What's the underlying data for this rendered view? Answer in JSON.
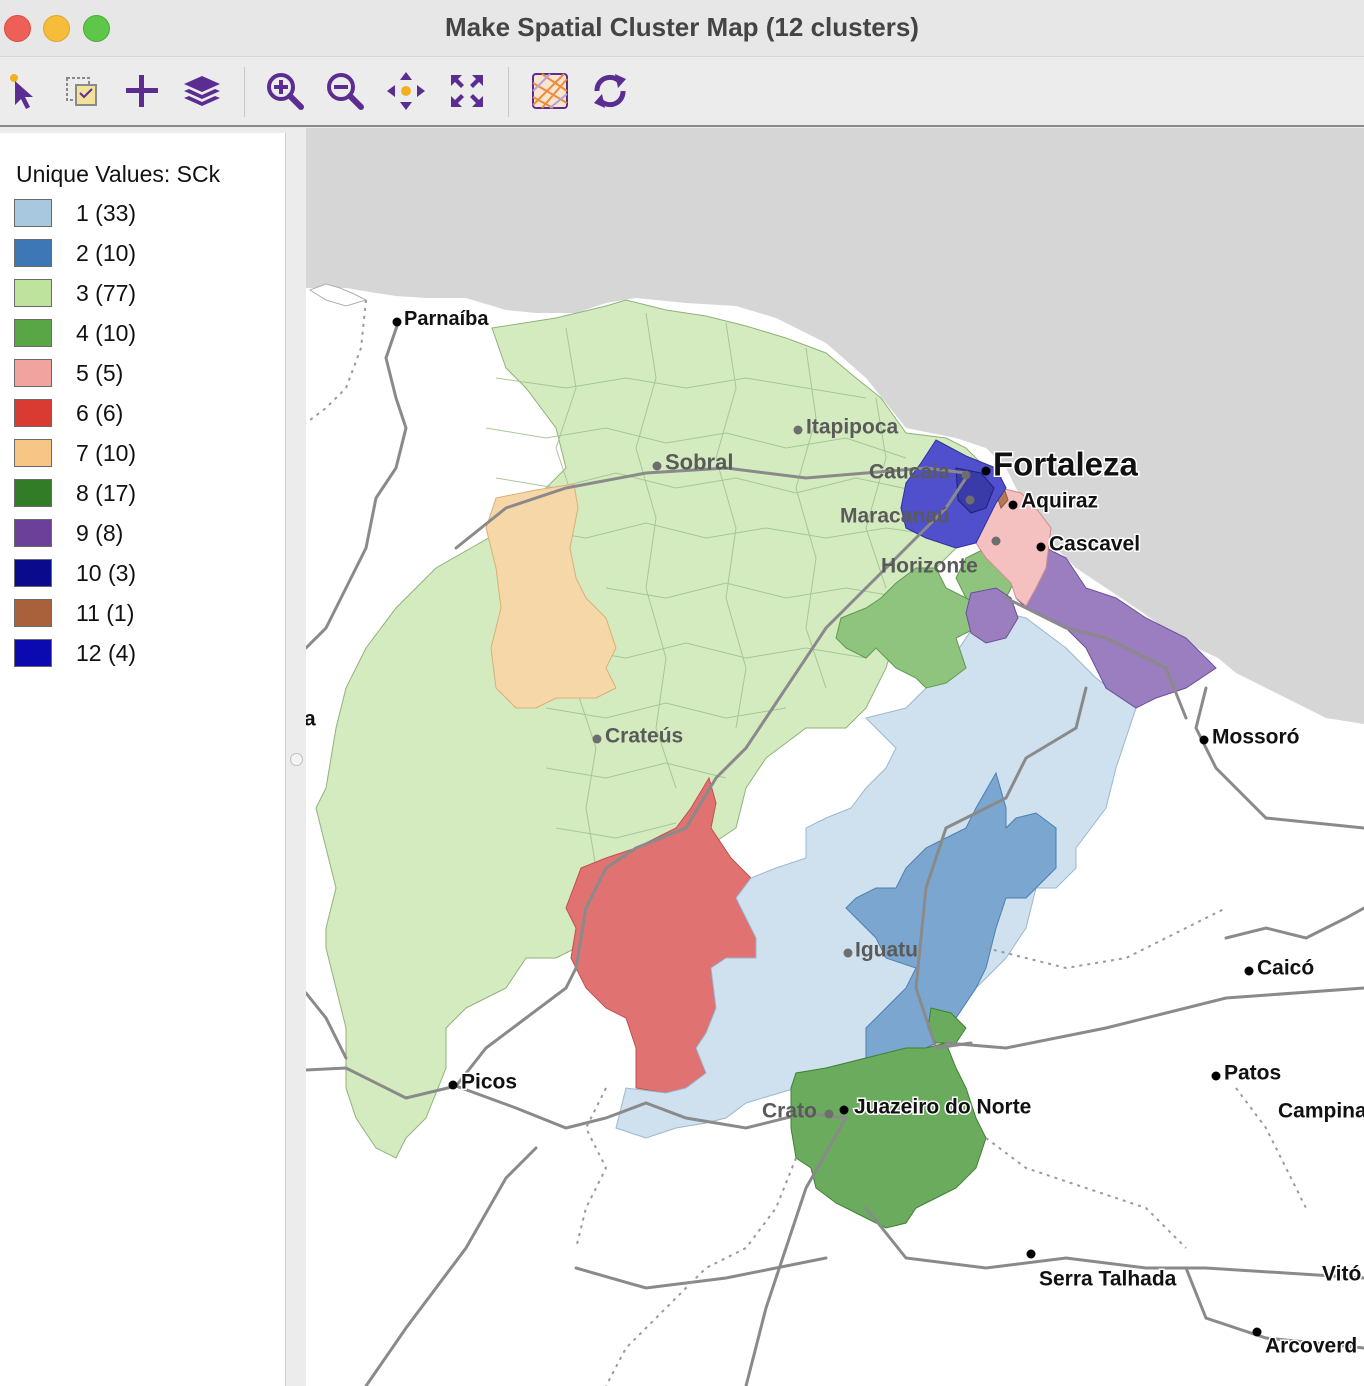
{
  "window": {
    "title": "Make Spatial Cluster Map (12 clusters)"
  },
  "toolbar": {
    "buttons": [
      {
        "name": "select-tool-button",
        "icon": "pointer-icon"
      },
      {
        "name": "selection-shape-button",
        "icon": "selection-icon"
      },
      {
        "name": "add-layer-button",
        "icon": "plus-icon"
      },
      {
        "name": "layers-button",
        "icon": "layers-icon"
      },
      {
        "name": "zoom-in-button",
        "icon": "zoom-in-icon"
      },
      {
        "name": "zoom-out-button",
        "icon": "zoom-out-icon"
      },
      {
        "name": "pan-button",
        "icon": "pan-icon"
      },
      {
        "name": "full-extent-button",
        "icon": "full-extent-icon"
      },
      {
        "name": "basemap-button",
        "icon": "basemap-icon"
      },
      {
        "name": "refresh-button",
        "icon": "refresh-icon"
      }
    ],
    "icon_color": "#5b2d91"
  },
  "legend": {
    "title": "Unique Values: SCk",
    "items": [
      {
        "label": "1 (33)",
        "color": "#a8c8e0"
      },
      {
        "label": "2 (10)",
        "color": "#3d77b5"
      },
      {
        "label": "3 (77)",
        "color": "#bde39d"
      },
      {
        "label": "4 (10)",
        "color": "#59a646"
      },
      {
        "label": "5 (5)",
        "color": "#f1a3a0"
      },
      {
        "label": "6 (6)",
        "color": "#d93a32"
      },
      {
        "label": "7 (10)",
        "color": "#f7c584"
      },
      {
        "label": "8 (17)",
        "color": "#337c27"
      },
      {
        "label": "9 (8)",
        "color": "#6a4099"
      },
      {
        "label": "10 (3)",
        "color": "#0a0a8c"
      },
      {
        "label": "11 (1)",
        "color": "#a8613a"
      },
      {
        "label": "12 (4)",
        "color": "#0a0ab0"
      }
    ]
  },
  "map": {
    "cities": [
      {
        "name": "Parnaíba",
        "kind": "black"
      },
      {
        "name": "Itapipoca",
        "kind": "gray"
      },
      {
        "name": "Sobral",
        "kind": "gray"
      },
      {
        "name": "Caucaia",
        "kind": "gray"
      },
      {
        "name": "Fortaleza",
        "kind": "black"
      },
      {
        "name": "Aquiraz",
        "kind": "black"
      },
      {
        "name": "Maracanaú",
        "kind": "gray"
      },
      {
        "name": "Cascavel",
        "kind": "black"
      },
      {
        "name": "Horizonte",
        "kind": "gray"
      },
      {
        "name": "Crateús",
        "kind": "gray"
      },
      {
        "name": "Mossoró",
        "kind": "black"
      },
      {
        "name": "Iguatu",
        "kind": "gray"
      },
      {
        "name": "Caicó",
        "kind": "black"
      },
      {
        "name": "Patos",
        "kind": "black"
      },
      {
        "name": "Campina",
        "kind": "black"
      },
      {
        "name": "Picos",
        "kind": "black"
      },
      {
        "name": "Crato",
        "kind": "gray"
      },
      {
        "name": "Juazeiro do Norte",
        "kind": "black"
      },
      {
        "name": "Serra Talhada",
        "kind": "black"
      },
      {
        "name": "Vitó",
        "kind": "black"
      },
      {
        "name": "Arcoverd",
        "kind": "black"
      },
      {
        "name": "a",
        "kind": "black"
      }
    ]
  }
}
